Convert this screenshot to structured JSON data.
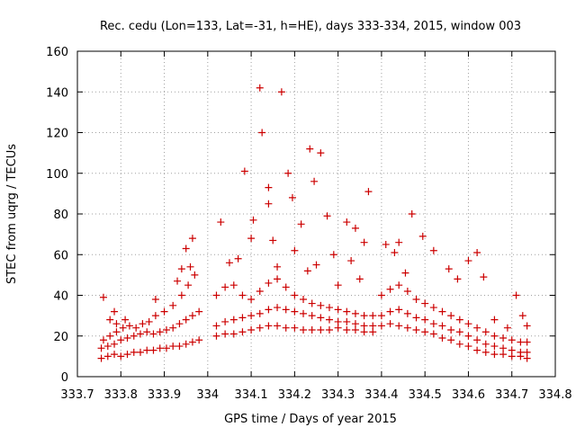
{
  "chart_data": {
    "type": "scatter",
    "title": "Rec. cedu (Lon=133, Lat=-31, h=HE), days 333-334, 2015, window 003",
    "xlabel": "GPS time / Days of year 2015",
    "ylabel": "STEC from uqrg / TECUs",
    "xlim": [
      333.7,
      334.8
    ],
    "ylim": [
      0,
      160
    ],
    "xticks": [
      333.7,
      333.8,
      333.9,
      334.0,
      334.1,
      334.2,
      334.3,
      334.4,
      334.5,
      334.6,
      334.7,
      334.8
    ],
    "xtick_labels": [
      "333.7",
      "333.8",
      "333.9",
      "334",
      "334.1",
      "334.2",
      "334.3",
      "334.4",
      "334.5",
      "334.6",
      "334.7",
      "334.8"
    ],
    "yticks": [
      0,
      20,
      40,
      60,
      80,
      100,
      120,
      140,
      160
    ],
    "ytick_labels": [
      "0",
      "20",
      "40",
      "60",
      "80",
      "100",
      "120",
      "140",
      "160"
    ],
    "grid": true,
    "marker": "+",
    "marker_color": "#cc0000",
    "series": [
      {
        "name": "STEC",
        "points": [
          [
            333.755,
            9
          ],
          [
            333.77,
            10
          ],
          [
            333.785,
            11
          ],
          [
            333.8,
            10
          ],
          [
            333.815,
            11
          ],
          [
            333.83,
            12
          ],
          [
            333.845,
            12
          ],
          [
            333.86,
            13
          ],
          [
            333.875,
            13
          ],
          [
            333.89,
            14
          ],
          [
            333.905,
            14
          ],
          [
            333.92,
            15
          ],
          [
            333.935,
            15
          ],
          [
            333.95,
            16
          ],
          [
            333.965,
            17
          ],
          [
            333.98,
            18
          ],
          [
            333.755,
            14
          ],
          [
            333.77,
            15
          ],
          [
            333.785,
            16
          ],
          [
            333.8,
            18
          ],
          [
            333.815,
            19
          ],
          [
            333.83,
            20
          ],
          [
            333.845,
            21
          ],
          [
            333.86,
            22
          ],
          [
            333.875,
            21
          ],
          [
            333.89,
            22
          ],
          [
            333.905,
            23
          ],
          [
            333.92,
            24
          ],
          [
            333.935,
            26
          ],
          [
            333.95,
            28
          ],
          [
            333.965,
            30
          ],
          [
            333.98,
            32
          ],
          [
            333.76,
            18
          ],
          [
            333.775,
            20
          ],
          [
            333.79,
            22
          ],
          [
            333.805,
            24
          ],
          [
            333.82,
            25
          ],
          [
            333.835,
            24
          ],
          [
            333.85,
            26
          ],
          [
            333.865,
            27
          ],
          [
            333.88,
            30
          ],
          [
            333.9,
            32
          ],
          [
            333.92,
            35
          ],
          [
            333.94,
            40
          ],
          [
            333.955,
            45
          ],
          [
            333.97,
            50
          ],
          [
            333.76,
            39
          ],
          [
            333.775,
            28
          ],
          [
            333.785,
            32
          ],
          [
            333.79,
            26
          ],
          [
            333.81,
            28
          ],
          [
            333.88,
            38
          ],
          [
            333.94,
            53
          ],
          [
            333.95,
            63
          ],
          [
            333.965,
            68
          ],
          [
            333.96,
            54
          ],
          [
            333.93,
            47
          ],
          [
            334.02,
            20
          ],
          [
            334.04,
            21
          ],
          [
            334.06,
            21
          ],
          [
            334.08,
            22
          ],
          [
            334.1,
            23
          ],
          [
            334.12,
            24
          ],
          [
            334.14,
            25
          ],
          [
            334.16,
            25
          ],
          [
            334.18,
            24
          ],
          [
            334.2,
            24
          ],
          [
            334.22,
            23
          ],
          [
            334.24,
            23
          ],
          [
            334.26,
            23
          ],
          [
            334.28,
            23
          ],
          [
            334.3,
            24
          ],
          [
            334.32,
            23
          ],
          [
            334.34,
            23
          ],
          [
            334.36,
            22
          ],
          [
            334.38,
            22
          ],
          [
            334.02,
            25
          ],
          [
            334.04,
            27
          ],
          [
            334.06,
            28
          ],
          [
            334.08,
            29
          ],
          [
            334.1,
            30
          ],
          [
            334.12,
            31
          ],
          [
            334.14,
            33
          ],
          [
            334.16,
            34
          ],
          [
            334.18,
            33
          ],
          [
            334.2,
            32
          ],
          [
            334.22,
            31
          ],
          [
            334.24,
            30
          ],
          [
            334.26,
            29
          ],
          [
            334.28,
            28
          ],
          [
            334.3,
            27
          ],
          [
            334.32,
            27
          ],
          [
            334.34,
            26
          ],
          [
            334.36,
            25
          ],
          [
            334.38,
            25
          ],
          [
            334.02,
            40
          ],
          [
            334.04,
            44
          ],
          [
            334.06,
            45
          ],
          [
            334.08,
            40
          ],
          [
            334.1,
            38
          ],
          [
            334.12,
            42
          ],
          [
            334.14,
            46
          ],
          [
            334.16,
            48
          ],
          [
            334.18,
            44
          ],
          [
            334.2,
            40
          ],
          [
            334.22,
            38
          ],
          [
            334.24,
            36
          ],
          [
            334.26,
            35
          ],
          [
            334.28,
            34
          ],
          [
            334.3,
            33
          ],
          [
            334.32,
            32
          ],
          [
            334.34,
            31
          ],
          [
            334.36,
            30
          ],
          [
            334.38,
            30
          ],
          [
            334.03,
            76
          ],
          [
            334.05,
            56
          ],
          [
            334.07,
            58
          ],
          [
            334.085,
            101
          ],
          [
            334.105,
            77
          ],
          [
            334.12,
            142
          ],
          [
            334.125,
            120
          ],
          [
            334.14,
            93
          ],
          [
            334.14,
            85
          ],
          [
            334.15,
            67
          ],
          [
            334.17,
            140
          ],
          [
            334.185,
            100
          ],
          [
            334.195,
            88
          ],
          [
            334.215,
            75
          ],
          [
            334.235,
            112
          ],
          [
            334.245,
            96
          ],
          [
            334.26,
            110
          ],
          [
            334.275,
            79
          ],
          [
            334.29,
            60
          ],
          [
            334.32,
            76
          ],
          [
            334.34,
            73
          ],
          [
            334.36,
            66
          ],
          [
            334.37,
            91
          ],
          [
            334.1,
            68
          ],
          [
            334.16,
            54
          ],
          [
            334.2,
            62
          ],
          [
            334.23,
            52
          ],
          [
            334.25,
            55
          ],
          [
            334.3,
            45
          ],
          [
            334.33,
            57
          ],
          [
            334.35,
            48
          ],
          [
            334.4,
            25
          ],
          [
            334.42,
            26
          ],
          [
            334.44,
            25
          ],
          [
            334.46,
            24
          ],
          [
            334.48,
            23
          ],
          [
            334.5,
            22
          ],
          [
            334.52,
            21
          ],
          [
            334.54,
            19
          ],
          [
            334.56,
            18
          ],
          [
            334.58,
            16
          ],
          [
            334.6,
            15
          ],
          [
            334.62,
            13
          ],
          [
            334.64,
            12
          ],
          [
            334.66,
            11
          ],
          [
            334.68,
            11
          ],
          [
            334.7,
            10
          ],
          [
            334.72,
            10
          ],
          [
            334.735,
            9
          ],
          [
            334.4,
            30
          ],
          [
            334.42,
            32
          ],
          [
            334.44,
            33
          ],
          [
            334.46,
            31
          ],
          [
            334.48,
            29
          ],
          [
            334.5,
            28
          ],
          [
            334.52,
            26
          ],
          [
            334.54,
            25
          ],
          [
            334.56,
            23
          ],
          [
            334.58,
            22
          ],
          [
            334.6,
            20
          ],
          [
            334.62,
            18
          ],
          [
            334.64,
            16
          ],
          [
            334.66,
            15
          ],
          [
            334.68,
            14
          ],
          [
            334.7,
            13
          ],
          [
            334.72,
            12
          ],
          [
            334.735,
            12
          ],
          [
            334.4,
            40
          ],
          [
            334.42,
            43
          ],
          [
            334.44,
            45
          ],
          [
            334.46,
            42
          ],
          [
            334.48,
            38
          ],
          [
            334.5,
            36
          ],
          [
            334.52,
            34
          ],
          [
            334.54,
            32
          ],
          [
            334.56,
            30
          ],
          [
            334.58,
            28
          ],
          [
            334.6,
            26
          ],
          [
            334.62,
            24
          ],
          [
            334.64,
            22
          ],
          [
            334.66,
            20
          ],
          [
            334.68,
            19
          ],
          [
            334.7,
            18
          ],
          [
            334.72,
            17
          ],
          [
            334.735,
            17
          ],
          [
            334.41,
            65
          ],
          [
            334.43,
            61
          ],
          [
            334.44,
            66
          ],
          [
            334.455,
            51
          ],
          [
            334.47,
            80
          ],
          [
            334.495,
            69
          ],
          [
            334.52,
            62
          ],
          [
            334.555,
            53
          ],
          [
            334.575,
            48
          ],
          [
            334.6,
            57
          ],
          [
            334.62,
            61
          ],
          [
            334.635,
            49
          ],
          [
            334.66,
            28
          ],
          [
            334.69,
            24
          ],
          [
            334.71,
            40
          ],
          [
            334.725,
            30
          ],
          [
            334.735,
            25
          ]
        ]
      }
    ]
  }
}
